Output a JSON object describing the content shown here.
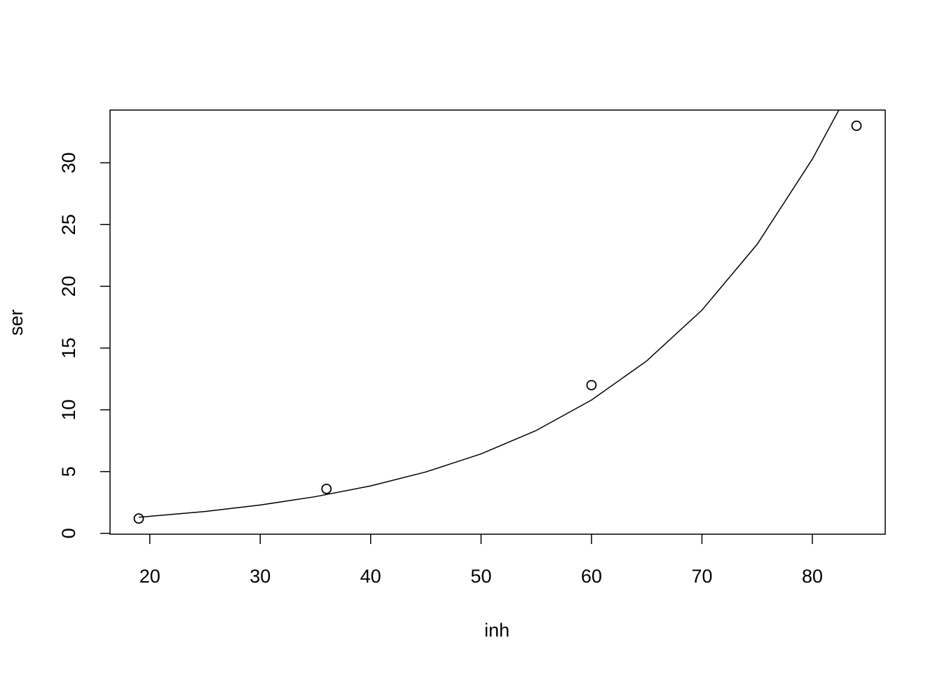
{
  "chart_data": {
    "type": "scatter",
    "x_label": "inh",
    "y_label": "ser",
    "x": [
      19,
      36,
      60,
      84
    ],
    "values": [
      1.2,
      3.6,
      12,
      33
    ],
    "curve": {
      "x": [
        19,
        25,
        30,
        35,
        40,
        45,
        50,
        55,
        60,
        65,
        70,
        75,
        80,
        82.6
      ],
      "values": [
        1.3,
        1.77,
        2.29,
        2.97,
        3.84,
        4.97,
        6.43,
        8.33,
        10.79,
        13.96,
        18.07,
        23.4,
        30.3,
        34.6
      ]
    },
    "color": "#000000",
    "xlim": [
      16.4,
      86.6
    ],
    "ylim": [
      -0.07,
      34.27
    ],
    "xticks": [
      20,
      30,
      40,
      50,
      60,
      70,
      80
    ],
    "yticks": [
      0,
      5,
      10,
      15,
      20,
      25,
      30
    ]
  }
}
